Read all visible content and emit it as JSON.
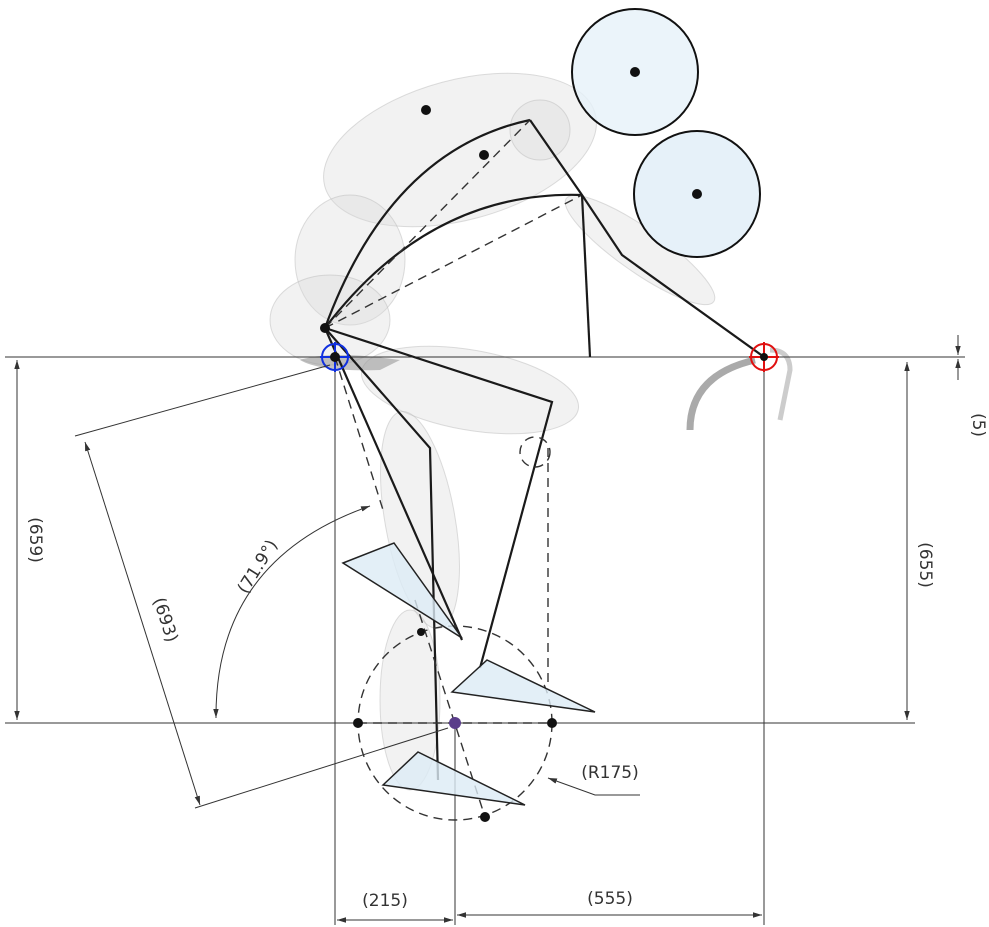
{
  "dimensions": {
    "saddle_height": "(659)",
    "leg_length": "(693)",
    "angle": "(71.9°)",
    "bar_height": "(655)",
    "drop": "(5)",
    "crank": "(R175)",
    "setback": "(215)",
    "reach": "(555)"
  }
}
